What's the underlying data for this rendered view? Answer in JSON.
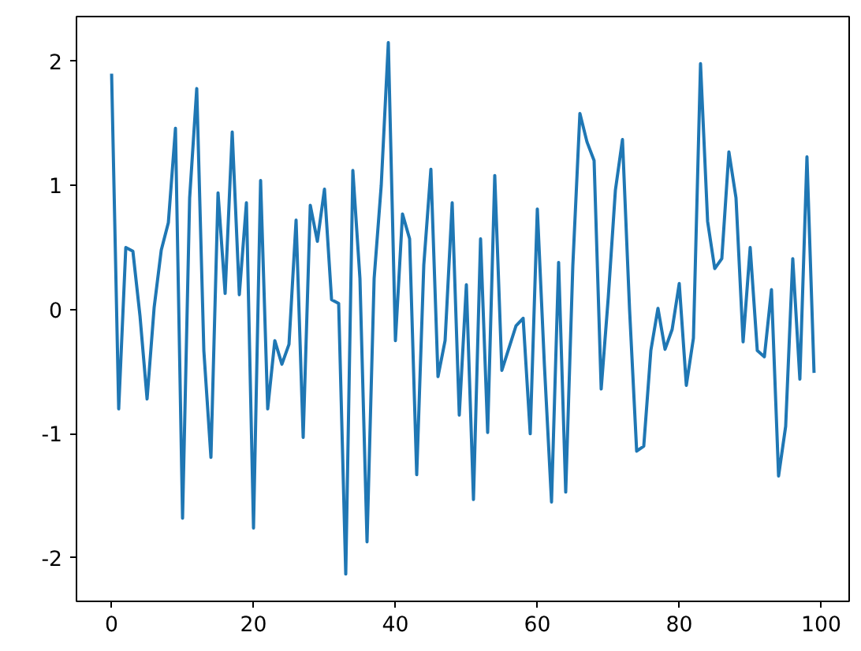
{
  "chart_data": {
    "type": "line",
    "x": [
      0,
      1,
      2,
      3,
      4,
      5,
      6,
      7,
      8,
      9,
      10,
      11,
      12,
      13,
      14,
      15,
      16,
      17,
      18,
      19,
      20,
      21,
      22,
      23,
      24,
      25,
      26,
      27,
      28,
      29,
      30,
      31,
      32,
      33,
      34,
      35,
      36,
      37,
      38,
      39,
      40,
      41,
      42,
      43,
      44,
      45,
      46,
      47,
      48,
      49,
      50,
      51,
      52,
      53,
      54,
      55,
      56,
      57,
      58,
      59,
      60,
      61,
      62,
      63,
      64,
      65,
      66,
      67,
      68,
      69,
      70,
      71,
      72,
      73,
      74,
      75,
      76,
      77,
      78,
      79,
      80,
      81,
      82,
      83,
      84,
      85,
      86,
      87,
      88,
      89,
      90,
      91,
      92,
      93,
      94,
      95,
      96,
      97,
      98,
      99
    ],
    "series": [
      {
        "color": "#1f77b4",
        "values": [
          1.9,
          -0.8,
          0.5,
          0.47,
          -0.05,
          -0.72,
          0.02,
          0.48,
          0.7,
          1.46,
          -1.68,
          0.9,
          1.78,
          -0.33,
          -1.19,
          0.94,
          0.13,
          1.43,
          0.12,
          0.86,
          -1.76,
          1.04,
          -0.8,
          -0.25,
          -0.44,
          -0.28,
          0.72,
          -1.03,
          0.84,
          0.55,
          0.97,
          0.08,
          0.05,
          -2.13,
          1.12,
          0.25,
          -1.87,
          0.25,
          1.0,
          2.15,
          -0.25,
          0.77,
          0.57,
          -1.33,
          0.36,
          1.13,
          -0.54,
          -0.25,
          0.86,
          -0.85,
          0.2,
          -1.53,
          0.57,
          -0.99,
          1.08,
          -0.49,
          -0.31,
          -0.13,
          -0.07,
          -1.0,
          0.81,
          -0.45,
          -1.55,
          0.38,
          -1.47,
          0.35,
          1.58,
          1.35,
          1.2,
          -0.64,
          0.1,
          0.96,
          1.37,
          0.0,
          -1.14,
          -1.1,
          -0.33,
          0.01,
          -0.32,
          -0.16,
          0.21,
          -0.61,
          -0.23,
          1.98,
          0.71,
          0.33,
          0.41,
          1.27,
          0.9,
          -0.26,
          0.5,
          -0.33,
          -0.38,
          0.16,
          -1.34,
          -0.94,
          0.41,
          -0.56,
          1.23,
          -0.51
        ]
      }
    ],
    "xlim": [
      -4.95,
      103.95
    ],
    "ylim": [
      -2.35,
      2.36
    ],
    "xticks": [
      0,
      20,
      40,
      60,
      80,
      100
    ],
    "yticks": [
      -2,
      -1,
      0,
      1,
      2
    ],
    "grid": false
  }
}
